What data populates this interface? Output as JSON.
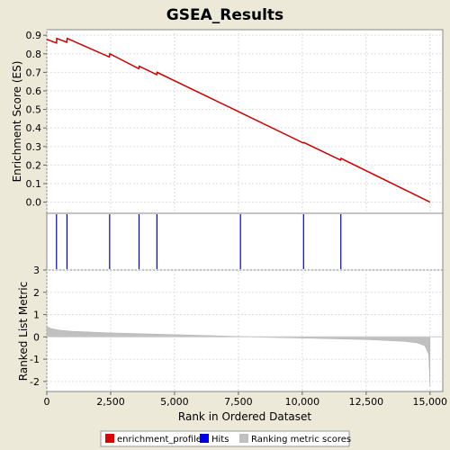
{
  "chart_data": [
    {
      "panel": "enrichment",
      "type": "line",
      "title": "GSEA_Results",
      "ylabel": "Enrichment Score (ES)",
      "ylim": [
        -0.06,
        0.93
      ],
      "yticks": [
        "0.9",
        "0.8",
        "0.7",
        "0.6",
        "0.5",
        "0.4",
        "0.3",
        "0.2",
        "0.1",
        "0.0"
      ],
      "ytick_values": [
        0.9,
        0.8,
        0.7,
        0.6,
        0.5,
        0.4,
        0.3,
        0.2,
        0.1,
        0.0
      ],
      "grid": true,
      "color": "#cc0000",
      "x": [
        0,
        380,
        390,
        780,
        800,
        2450,
        2470,
        3600,
        3620,
        4300,
        4320,
        7580,
        10040,
        10060,
        11500,
        11520,
        15000
      ],
      "y": [
        0.878,
        0.858,
        0.883,
        0.862,
        0.883,
        0.783,
        0.8,
        0.72,
        0.733,
        0.688,
        0.7,
        0.483,
        0.319,
        0.322,
        0.227,
        0.236,
        0.0
      ]
    },
    {
      "panel": "hits",
      "type": "scatter",
      "color": "#0000cc",
      "hit_positions": [
        380,
        790,
        2460,
        3610,
        4310,
        7580,
        10050,
        11510
      ]
    },
    {
      "panel": "ranking",
      "type": "area",
      "ylabel": "Ranked List Metric",
      "xlabel": "Rank in Ordered Dataset",
      "ylim": [
        -2.45,
        3.0
      ],
      "yticks": [
        "3",
        "2",
        "1",
        "0",
        "-1",
        "-2"
      ],
      "ytick_values": [
        3,
        2,
        1,
        0,
        -1,
        -2
      ],
      "xlim": [
        0,
        15500
      ],
      "xticks": [
        "0",
        "2,500",
        "5,000",
        "7,500",
        "10,000",
        "12,500",
        "15,000"
      ],
      "xtick_values": [
        0,
        2500,
        5000,
        7500,
        10000,
        12500,
        15000
      ],
      "color": "#c0c0c0",
      "x": [
        0,
        50,
        150,
        500,
        1000,
        2500,
        5000,
        7500,
        8500,
        10000,
        12500,
        14000,
        14500,
        14800,
        14950,
        15000
      ],
      "y": [
        0.5,
        0.45,
        0.38,
        0.3,
        0.25,
        0.18,
        0.1,
        0.02,
        -0.02,
        -0.05,
        -0.12,
        -0.2,
        -0.27,
        -0.4,
        -0.8,
        -2.25
      ]
    }
  ],
  "legend": {
    "items": [
      {
        "label": "enrichment_profile",
        "color": "#dd0000"
      },
      {
        "label": "Hits",
        "color": "#0000dd"
      },
      {
        "label": "Ranking metric scores",
        "color": "#c0c0c0"
      }
    ]
  }
}
